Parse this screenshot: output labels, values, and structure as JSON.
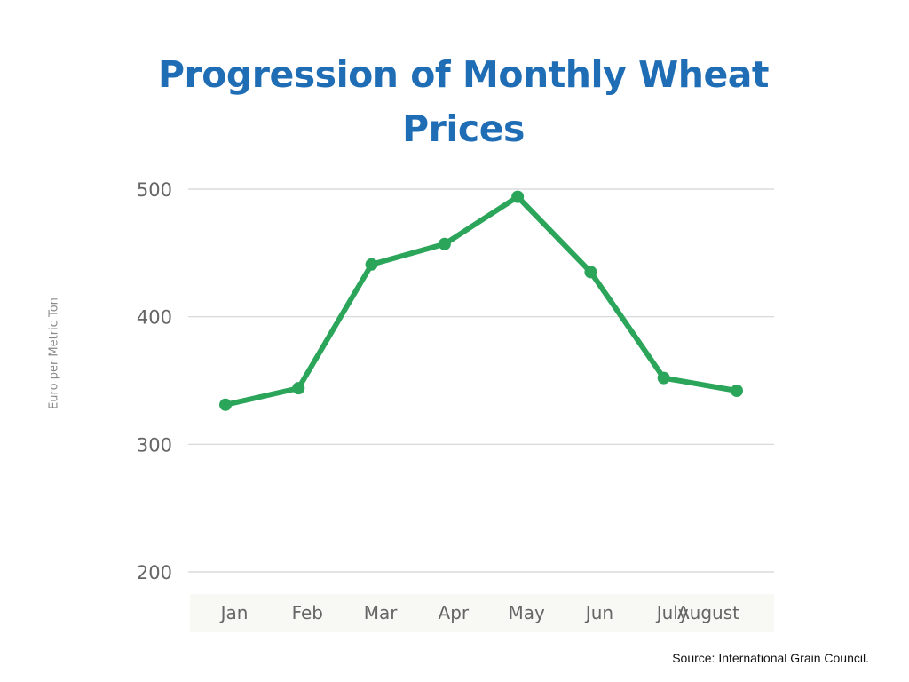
{
  "chart_data": {
    "type": "line",
    "title": "Progression of Monthly Wheat Prices",
    "xlabel": "",
    "ylabel": "Euro per Metric Ton",
    "categories": [
      "Jan",
      "Feb",
      "Mar",
      "Apr",
      "May",
      "Jun",
      "July",
      "August"
    ],
    "series": [
      {
        "values": [
          331,
          344,
          441,
          457,
          494,
          435,
          352,
          342
        ]
      }
    ],
    "ylim": [
      200,
      500
    ],
    "yticks": [
      200,
      300,
      400,
      500
    ],
    "grid": true,
    "legend": "none",
    "source": "Source: International Grain Council."
  },
  "colors": {
    "title": "#1f6db5",
    "line": "#2aa55a",
    "grid": "#d4d4d4",
    "tick_text": "#666666",
    "axis_band": "#f8f8f4"
  }
}
